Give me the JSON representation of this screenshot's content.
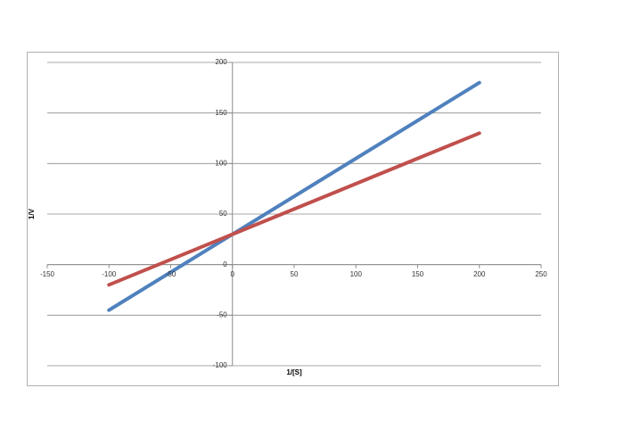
{
  "chart_data": {
    "type": "line",
    "x_label": "1/[S]",
    "y_label": "1/V",
    "x": [
      -100,
      200
    ],
    "series": [
      {
        "color": "#4f81bd",
        "values": [
          -45,
          180
        ]
      },
      {
        "color": "#c0504d",
        "values": [
          -20,
          130
        ]
      }
    ],
    "xlim": [
      -150,
      250
    ],
    "xticks": [
      -150,
      -100,
      -50,
      0,
      50,
      100,
      150,
      200,
      250
    ],
    "ylim": [
      -100,
      200
    ],
    "yticks": [
      -100,
      -50,
      0,
      50,
      100,
      150,
      200
    ],
    "grid": true
  }
}
